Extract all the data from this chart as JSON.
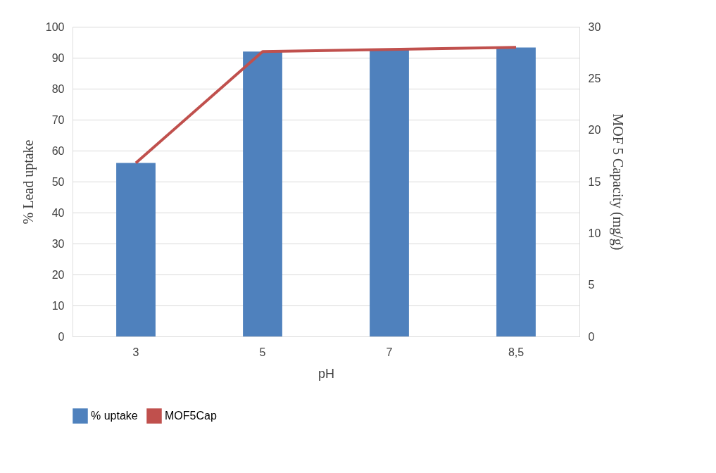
{
  "chart_data": {
    "type": "bar",
    "xlabel": "pH",
    "ylabel": "% Lead uptake",
    "y2label": "MOF 5 Capacity (mg/g)",
    "categories": [
      "3",
      "5",
      "7",
      "8,5"
    ],
    "series": [
      {
        "name": "% uptake",
        "color": "#4f81bd",
        "values": [
          56,
          92,
          92.5,
          93.3
        ]
      },
      {
        "name": "MOF5Cap",
        "type": "line",
        "axis": "y2",
        "color": "#c0504d",
        "values": [
          16.8,
          27.6,
          27.8,
          28.0
        ]
      }
    ],
    "ylim": [
      0,
      100
    ],
    "yticks": [
      0,
      10,
      20,
      30,
      40,
      50,
      60,
      70,
      80,
      90,
      100
    ],
    "y2lim": [
      0,
      30
    ],
    "y2ticks": [
      0,
      5,
      10,
      15,
      20,
      25,
      30
    ],
    "grid": "y",
    "legend": "bottom",
    "marker": "none",
    "line_style": "solid"
  }
}
